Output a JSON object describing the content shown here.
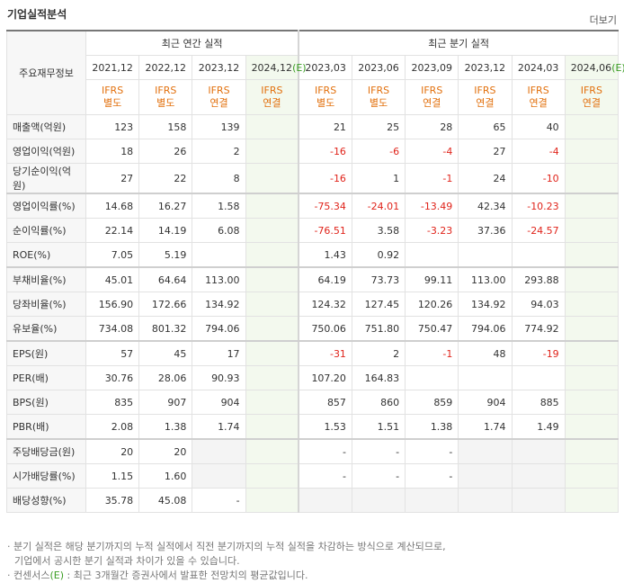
{
  "header": {
    "title": "기업실적분석",
    "more": "더보기"
  },
  "table": {
    "corner": "주요재무정보",
    "groups": [
      {
        "label": "최근 연간 실적",
        "span": 4
      },
      {
        "label": "최근 분기 실적",
        "span": 6
      }
    ],
    "columns": [
      {
        "period": "2021,12",
        "basis": [
          "IFRS",
          "별도"
        ]
      },
      {
        "period": "2022,12",
        "basis": [
          "IFRS",
          "별도"
        ]
      },
      {
        "period": "2023,12",
        "basis": [
          "IFRS",
          "연결"
        ]
      },
      {
        "period": "2024,12",
        "estimate": "(E)",
        "basis": [
          "IFRS",
          "연결"
        ]
      },
      {
        "period": "2023,03",
        "basis": [
          "IFRS",
          "별도"
        ]
      },
      {
        "period": "2023,06",
        "basis": [
          "IFRS",
          "별도"
        ]
      },
      {
        "period": "2023,09",
        "basis": [
          "IFRS",
          "연결"
        ]
      },
      {
        "period": "2023,12",
        "basis": [
          "IFRS",
          "연결"
        ]
      },
      {
        "period": "2024,03",
        "basis": [
          "IFRS",
          "연결"
        ]
      },
      {
        "period": "2024,06",
        "estimate": "(E)",
        "basis": [
          "IFRS",
          "연결"
        ]
      }
    ],
    "rows": [
      {
        "label": "매출액(억원)",
        "values": [
          "123",
          "158",
          "139",
          null,
          "21",
          "25",
          "28",
          "65",
          "40",
          null
        ]
      },
      {
        "label": "영업이익(억원)",
        "values": [
          "18",
          "26",
          "2",
          null,
          "-16",
          "-6",
          "-4",
          "27",
          "-4",
          null
        ]
      },
      {
        "label": "당기순이익(억원)",
        "values": [
          "27",
          "22",
          "8",
          null,
          "-16",
          "1",
          "-1",
          "24",
          "-10",
          null
        ]
      },
      {
        "label": "영업이익률(%)",
        "values": [
          "14.68",
          "16.27",
          "1.58",
          null,
          "-75.34",
          "-24.01",
          "-13.49",
          "42.34",
          "-10.23",
          null
        ]
      },
      {
        "label": "순이익률(%)",
        "values": [
          "22.14",
          "14.19",
          "6.08",
          null,
          "-76.51",
          "3.58",
          "-3.23",
          "37.36",
          "-24.57",
          null
        ]
      },
      {
        "label": "ROE(%)",
        "values": [
          "7.05",
          "5.19",
          null,
          null,
          "1.43",
          "0.92",
          null,
          null,
          null,
          null
        ]
      },
      {
        "label": "부채비율(%)",
        "values": [
          "45.01",
          "64.64",
          "113.00",
          null,
          "64.19",
          "73.73",
          "99.11",
          "113.00",
          "293.88",
          null
        ]
      },
      {
        "label": "당좌비율(%)",
        "values": [
          "156.90",
          "172.66",
          "134.92",
          null,
          "124.32",
          "127.45",
          "120.26",
          "134.92",
          "94.03",
          null
        ]
      },
      {
        "label": "유보율(%)",
        "values": [
          "734.08",
          "801.32",
          "794.06",
          null,
          "750.06",
          "751.80",
          "750.47",
          "794.06",
          "774.92",
          null
        ]
      },
      {
        "label": "EPS(원)",
        "values": [
          "57",
          "45",
          "17",
          null,
          "-31",
          "2",
          "-1",
          "48",
          "-19",
          null
        ]
      },
      {
        "label": "PER(배)",
        "values": [
          "30.76",
          "28.06",
          "90.93",
          null,
          "107.20",
          "164.83",
          null,
          null,
          null,
          null
        ]
      },
      {
        "label": "BPS(원)",
        "values": [
          "835",
          "907",
          "904",
          null,
          "857",
          "860",
          "859",
          "904",
          "885",
          null
        ]
      },
      {
        "label": "PBR(배)",
        "values": [
          "2.08",
          "1.38",
          "1.74",
          null,
          "1.53",
          "1.51",
          "1.38",
          "1.74",
          "1.49",
          null
        ]
      },
      {
        "label": "주당배당금(원)",
        "values": [
          "20",
          "20",
          null,
          null,
          "-",
          "-",
          "-",
          null,
          null,
          null
        ]
      },
      {
        "label": "시가배당률(%)",
        "values": [
          "1.15",
          "1.60",
          null,
          null,
          "-",
          "-",
          "-",
          null,
          null,
          null
        ]
      },
      {
        "label": "배당성향(%)",
        "values": [
          "35.78",
          "45.08",
          "-",
          null,
          null,
          null,
          null,
          null,
          null,
          null
        ]
      }
    ],
    "group_ends": [
      2,
      5,
      8,
      12
    ]
  },
  "notes": [
    {
      "lines": [
        "분기 실적은 해당 분기까지의 누적 실적에서 직전 분기까지의 누적 실적을 차감하는 방식으로 계산되므로,",
        "기업에서 공시한 분기 실적과 차이가 있을 수 있습니다."
      ]
    },
    {
      "lead": "컨센서스",
      "mark": "(E)",
      "text": " : 최근 3개월간 증권사에서 발표한 전망치의 평균값입니다."
    }
  ]
}
